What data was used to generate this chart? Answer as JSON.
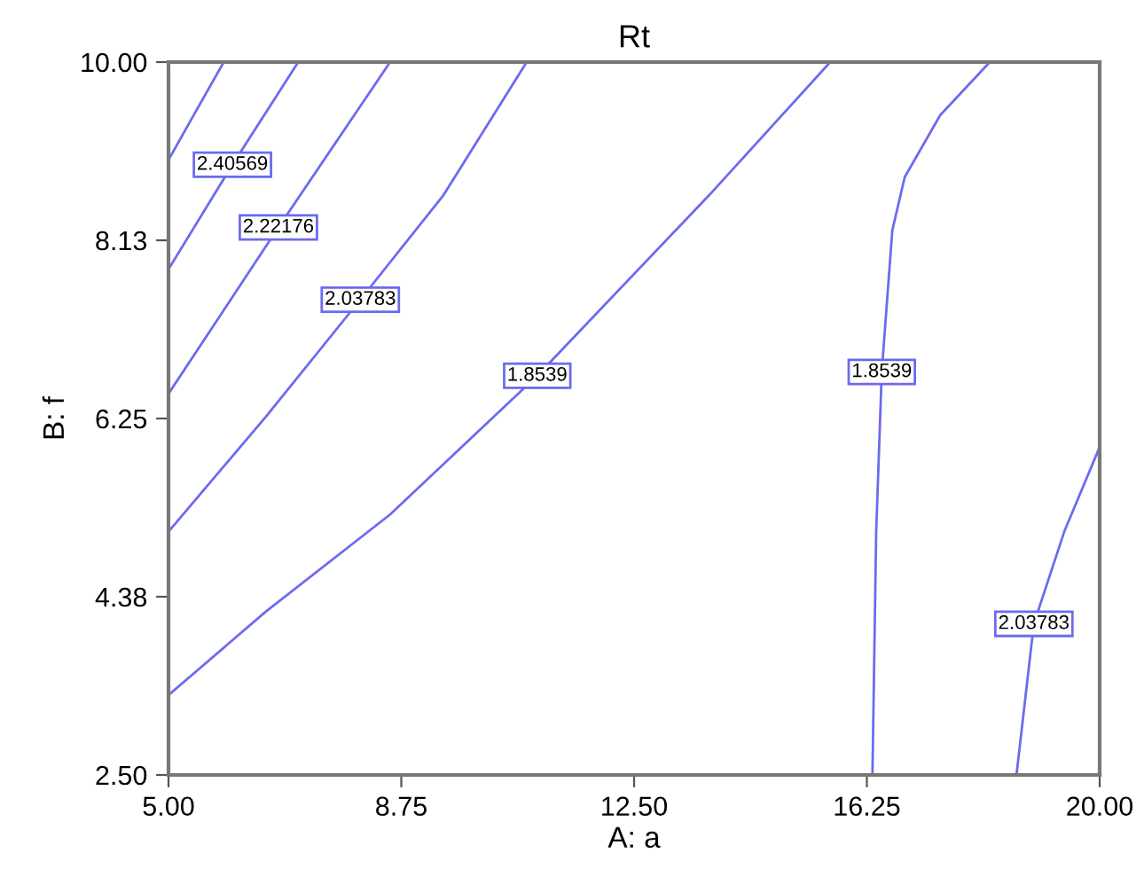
{
  "chart_data": {
    "type": "line",
    "title": "Rt",
    "xlabel": "A: a",
    "ylabel": "B: f",
    "xlim": [
      5,
      20
    ],
    "ylim": [
      2.5,
      10
    ],
    "xticks": [
      {
        "value": 5,
        "label": "5.00"
      },
      {
        "value": 8.75,
        "label": "8.75"
      },
      {
        "value": 12.5,
        "label": "12.50"
      },
      {
        "value": 16.25,
        "label": "16.25"
      },
      {
        "value": 20,
        "label": "20.00"
      }
    ],
    "yticks": [
      {
        "value": 2.5,
        "label": "2.50"
      },
      {
        "value": 4.375,
        "label": "4.38"
      },
      {
        "value": 6.25,
        "label": "6.25"
      },
      {
        "value": 8.125,
        "label": "8.13"
      },
      {
        "value": 10,
        "label": "10.00"
      }
    ],
    "grid": false,
    "legend": false,
    "marker": "none",
    "line_style": "solid",
    "series": [
      {
        "color": "#6b6bf0",
        "x": [
          5.89,
          5.43,
          5.0
        ],
        "values": [
          10,
          9.47,
          8.97
        ]
      },
      {
        "name": "2.40569",
        "color": "#6b6bf0",
        "x": [
          7.09,
          6.03,
          5.0
        ],
        "values": [
          10,
          8.92,
          7.82
        ]
      },
      {
        "name": "2.22176",
        "color": "#6b6bf0",
        "x": [
          8.57,
          6.77,
          5.0
        ],
        "values": [
          10,
          8.26,
          6.51
        ]
      },
      {
        "name": "2.03783",
        "color": "#6b6bf0",
        "x": [
          10.77,
          9.43,
          8.09,
          6.57,
          5.0
        ],
        "values": [
          10,
          8.6,
          7.5,
          6.27,
          5.06
        ]
      },
      {
        "name": "1.8539",
        "color": "#6b6bf0",
        "x": [
          15.66,
          13.71,
          10.94,
          8.57,
          6.57,
          5.0
        ],
        "values": [
          10,
          8.6,
          6.7,
          5.24,
          4.22,
          3.34
        ]
      },
      {
        "name": "1.8539",
        "color": "#6b6bf0",
        "x": [
          18.23,
          17.43,
          16.86,
          16.66,
          16.49,
          16.4,
          16.34
        ],
        "values": [
          10,
          9.44,
          8.79,
          8.23,
          6.74,
          5.06,
          2.5
        ]
      },
      {
        "name": "2.03783",
        "color": "#6b6bf0",
        "x": [
          20,
          19.43,
          18.94,
          18.66
        ],
        "values": [
          5.95,
          5.06,
          4.09,
          2.5
        ]
      }
    ]
  }
}
